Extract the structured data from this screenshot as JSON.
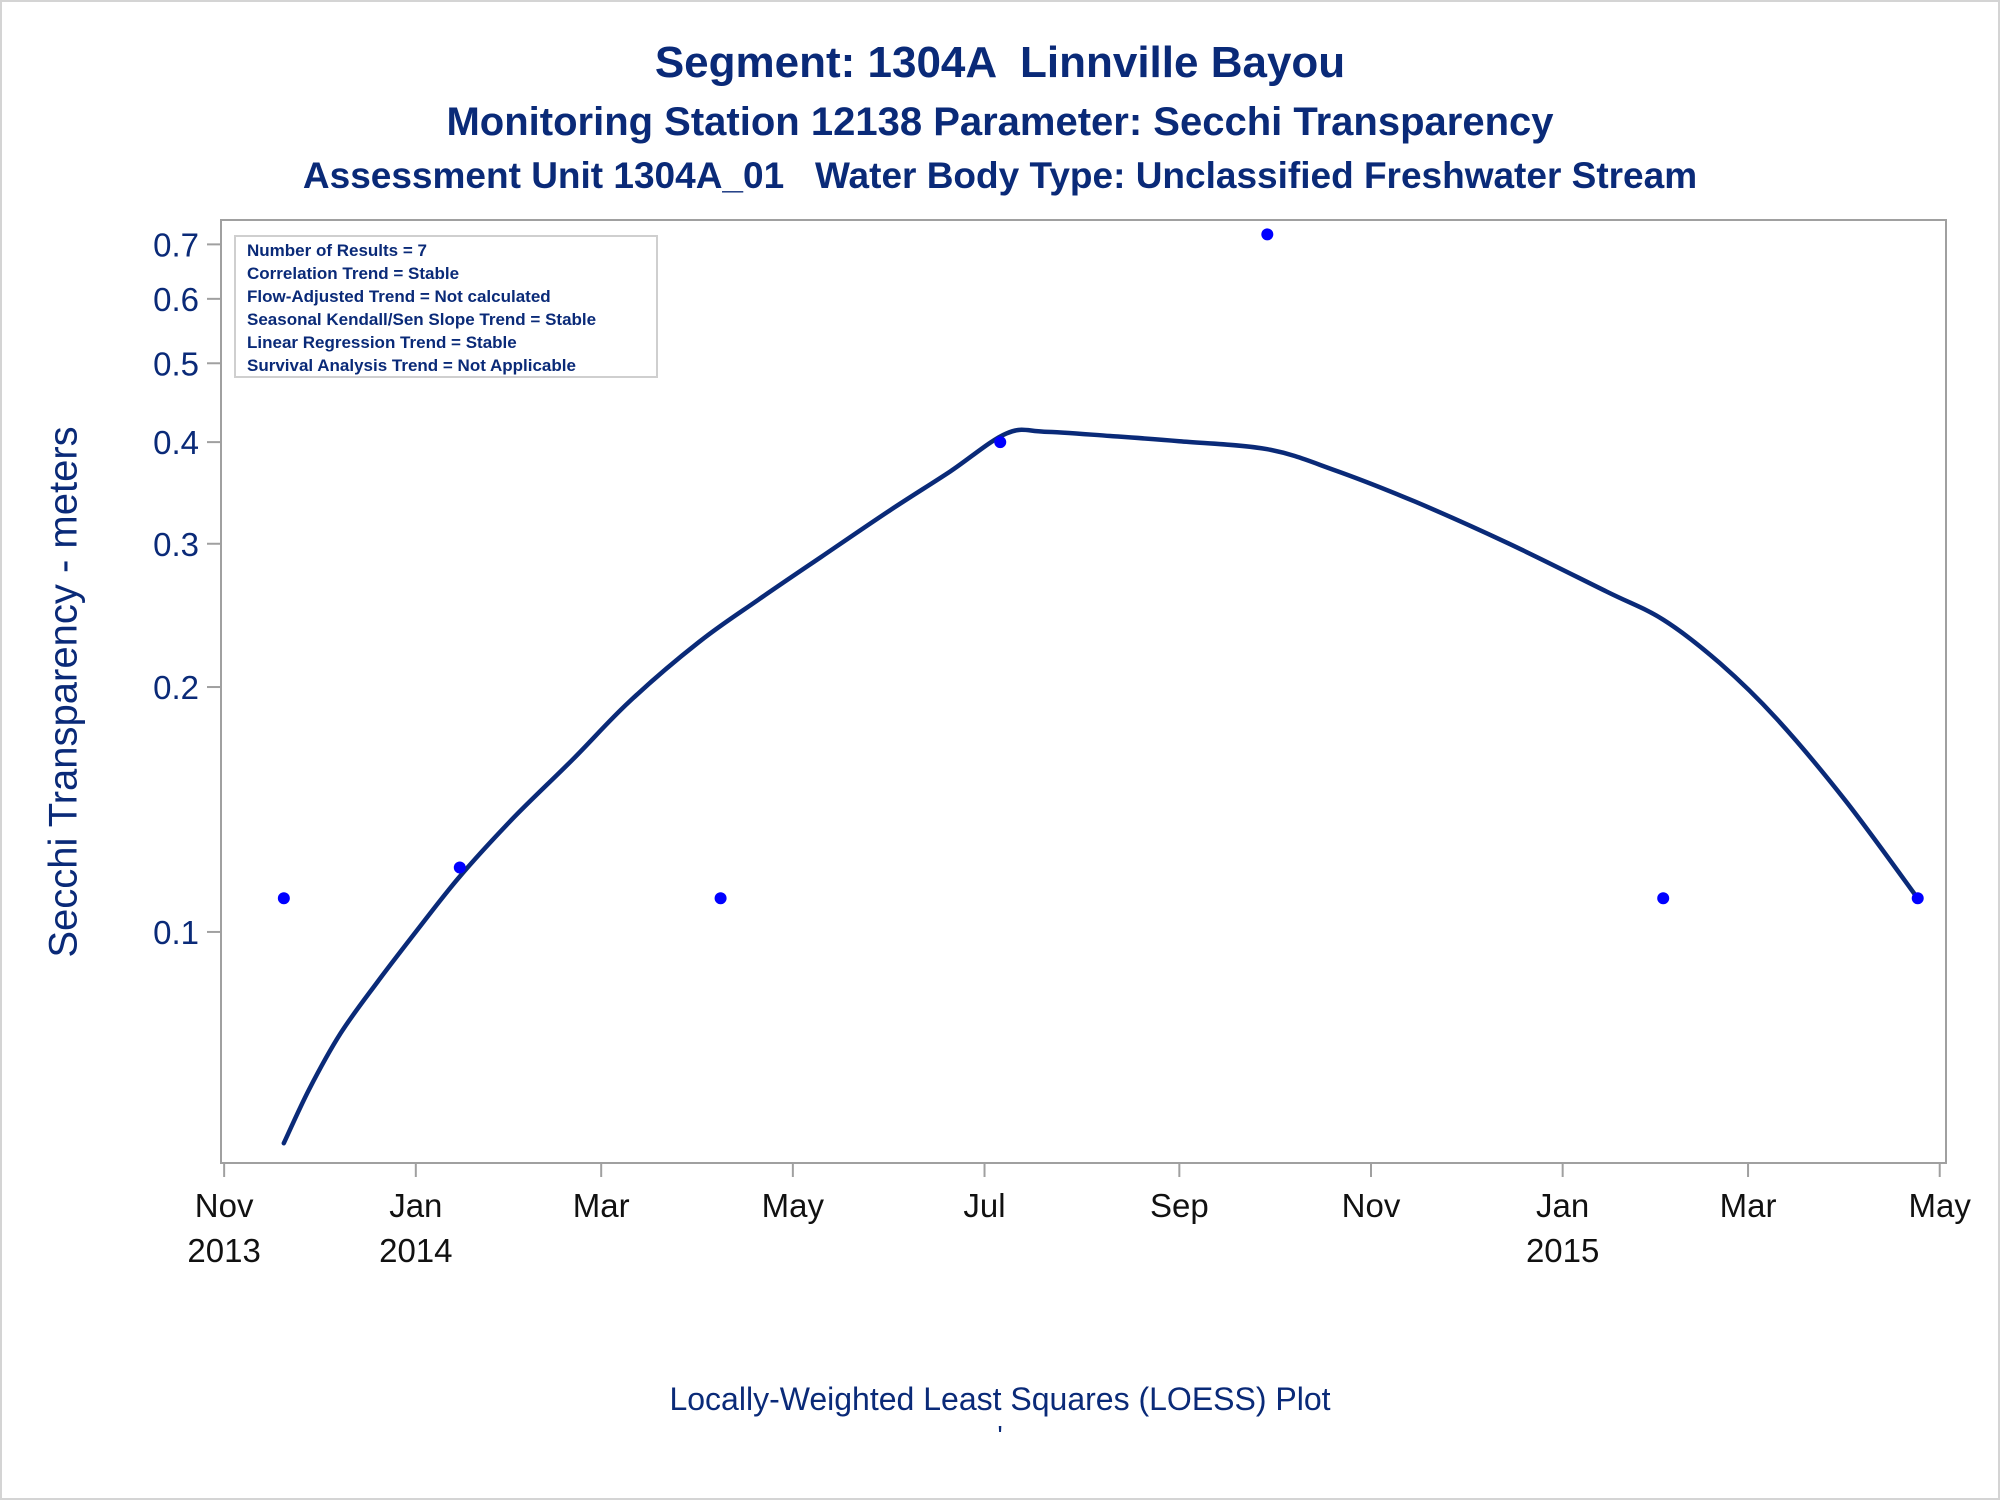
{
  "titles": {
    "line1": "Segment: 1304A  Linnville Bayou",
    "line2": "Monitoring Station 12138 Parameter: Secchi Transparency",
    "line3": "Assessment Unit 1304A_01   Water Body Type: Unclassified Freshwater Stream"
  },
  "footer": "Locally-Weighted Least Squares (LOESS) Plot",
  "footnote": "'",
  "stats_box": [
    "Number of Results = 7",
    "Correlation Trend = Stable",
    "Flow-Adjusted Trend = Not calculated",
    "Seasonal Kendall/Sen Slope Trend = Stable",
    "Linear Regression Trend = Stable",
    "Survival Analysis Trend = Not Applicable"
  ],
  "colors": {
    "title": "#0a2a78",
    "curve": "#0a2a78",
    "points": "#0000ff",
    "axis": "#a0a0a0"
  },
  "chart_data": {
    "type": "scatter",
    "ylabel": "Secchi Transparency - meters",
    "xlabel": "",
    "yscale": "log",
    "ylim": [
      0.052,
      0.75
    ],
    "xlim": [
      "2013-10-31",
      "2015-05-03"
    ],
    "yticks": [
      0.1,
      0.2,
      0.3,
      0.4,
      0.5,
      0.6,
      0.7
    ],
    "ytick_labels": [
      "0.1",
      "0.2",
      "0.3",
      "0.4",
      "0.5",
      "0.6",
      "0.7"
    ],
    "xticks": [
      {
        "date": "2013-11-01",
        "month": "Nov",
        "year": "2013"
      },
      {
        "date": "2014-01-01",
        "month": "Jan",
        "year": "2014"
      },
      {
        "date": "2014-03-01",
        "month": "Mar",
        "year": ""
      },
      {
        "date": "2014-05-01",
        "month": "May",
        "year": ""
      },
      {
        "date": "2014-07-01",
        "month": "Jul",
        "year": ""
      },
      {
        "date": "2014-09-01",
        "month": "Sep",
        "year": ""
      },
      {
        "date": "2014-11-01",
        "month": "Nov",
        "year": ""
      },
      {
        "date": "2015-01-01",
        "month": "Jan",
        "year": "2015"
      },
      {
        "date": "2015-03-01",
        "month": "Mar",
        "year": ""
      },
      {
        "date": "2015-05-01",
        "month": "May",
        "year": ""
      }
    ],
    "points": [
      {
        "x": "2013-11-20",
        "y": 0.11
      },
      {
        "x": "2014-01-15",
        "y": 0.12
      },
      {
        "x": "2014-04-08",
        "y": 0.11
      },
      {
        "x": "2014-07-06",
        "y": 0.4
      },
      {
        "x": "2014-09-29",
        "y": 0.72
      },
      {
        "x": "2015-02-02",
        "y": 0.11
      },
      {
        "x": "2015-04-24",
        "y": 0.11
      }
    ],
    "loess_curve": [
      {
        "x": "2013-11-20",
        "y": 0.055
      },
      {
        "x": "2013-11-28",
        "y": 0.064
      },
      {
        "x": "2013-12-08",
        "y": 0.075
      },
      {
        "x": "2013-12-20",
        "y": 0.087
      },
      {
        "x": "2014-01-01",
        "y": 0.1
      },
      {
        "x": "2014-01-15",
        "y": 0.117
      },
      {
        "x": "2014-02-01",
        "y": 0.138
      },
      {
        "x": "2014-02-20",
        "y": 0.163
      },
      {
        "x": "2014-03-10",
        "y": 0.192
      },
      {
        "x": "2014-04-01",
        "y": 0.227
      },
      {
        "x": "2014-04-20",
        "y": 0.256
      },
      {
        "x": "2014-05-10",
        "y": 0.289
      },
      {
        "x": "2014-06-01",
        "y": 0.33
      },
      {
        "x": "2014-06-20",
        "y": 0.368
      },
      {
        "x": "2014-07-08",
        "y": 0.41
      },
      {
        "x": "2014-07-20",
        "y": 0.412
      },
      {
        "x": "2014-08-10",
        "y": 0.407
      },
      {
        "x": "2014-09-01",
        "y": 0.401
      },
      {
        "x": "2014-09-29",
        "y": 0.392
      },
      {
        "x": "2014-10-20",
        "y": 0.37
      },
      {
        "x": "2014-11-15",
        "y": 0.338
      },
      {
        "x": "2014-12-15",
        "y": 0.3
      },
      {
        "x": "2015-01-15",
        "y": 0.262
      },
      {
        "x": "2015-02-02",
        "y": 0.242
      },
      {
        "x": "2015-02-20",
        "y": 0.214
      },
      {
        "x": "2015-03-10",
        "y": 0.183
      },
      {
        "x": "2015-04-01",
        "y": 0.145
      },
      {
        "x": "2015-04-24",
        "y": 0.11
      }
    ],
    "grid": false,
    "legend": "none"
  }
}
